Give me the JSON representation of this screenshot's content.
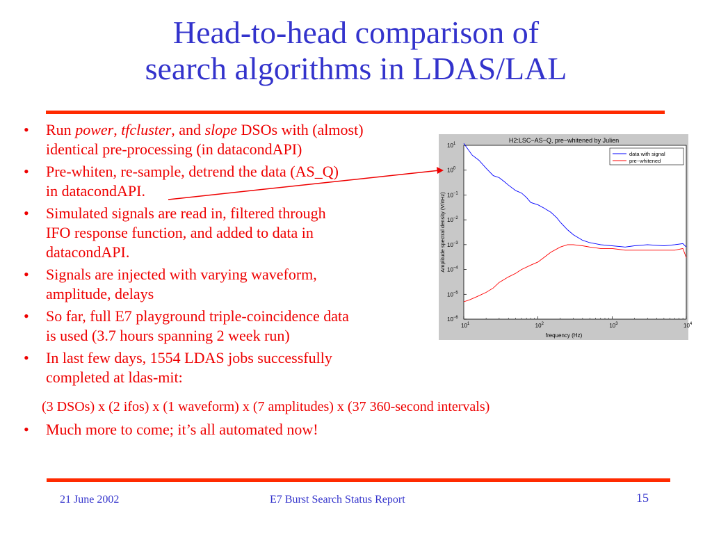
{
  "slide": {
    "title_line1": "Head-to-head comparison of",
    "title_line2": "search algorithms in LDAS/LAL",
    "bullets": [
      {
        "line1_parts": [
          "Run ",
          "power",
          ", ",
          "tfcluster",
          ", and ",
          "slope",
          " DSOs with (almost)"
        ],
        "line2": "identical pre-processing (in datacondAPI)"
      },
      {
        "line1": "Pre-whiten, re-sample, detrend the data (AS_Q)",
        "line2": "in datacondAPI."
      },
      {
        "line1": "Simulated signals are read in, filtered through",
        "line2": "IFO response function, and added to data in",
        "line3": "datacondAPI."
      },
      {
        "line1": "Signals are injected with varying waveform,",
        "line2": "amplitude, delays"
      },
      {
        "line1": "So far, full E7 playground triple-coincidence data",
        "line2": "is used (3.7 hours spanning 2 week run)"
      },
      {
        "line1": "In last few days, 1554 LDAS jobs successfully",
        "line2": "completed at ldas-mit:"
      }
    ],
    "sub_line": "(3 DSOs) x (2 ifos) x (1 waveform) x (7 amplitudes) x (37 360-second intervals)",
    "last_bullet": "Much more to come; it’s all automated now!",
    "bullet_glyph": "•"
  },
  "footer": {
    "date": "21 June 2002",
    "center": "E7 Burst Search Status Report",
    "page": "15"
  },
  "chart_data": {
    "type": "line",
    "title": "H2:LSC−AS−Q, pre−whitened by Julien",
    "xlabel": "frequency (Hz)",
    "ylabel": "Amplitude spectral density (V/rtHz)",
    "x_scale": "log",
    "y_scale": "log",
    "xlim": [
      10,
      10000
    ],
    "ylim": [
      1e-06,
      10
    ],
    "x_ticks": [
      {
        "base": "10",
        "exp": "1"
      },
      {
        "base": "10",
        "exp": "2"
      },
      {
        "base": "10",
        "exp": "3"
      },
      {
        "base": "10",
        "exp": "4"
      }
    ],
    "y_ticks": [
      {
        "base": "10",
        "exp": "1"
      },
      {
        "base": "10",
        "exp": "0"
      },
      {
        "base": "10",
        "exp": "−1"
      },
      {
        "base": "10",
        "exp": "−2"
      },
      {
        "base": "10",
        "exp": "−3"
      },
      {
        "base": "10",
        "exp": "−4"
      },
      {
        "base": "10",
        "exp": "−5"
      },
      {
        "base": "10",
        "exp": "−6"
      }
    ],
    "legend_position": "top-right",
    "grid": false,
    "series": [
      {
        "name": "data with signal",
        "color": "#0000ff",
        "x": [
          10,
          13,
          16,
          20,
          25,
          30,
          35,
          40,
          50,
          60,
          70,
          80,
          100,
          120,
          150,
          180,
          200,
          250,
          300,
          400,
          500,
          700,
          1000,
          1500,
          2000,
          3000,
          5000,
          7000,
          9000,
          10000
        ],
        "y": [
          12,
          4,
          2.5,
          1.2,
          0.6,
          0.5,
          0.35,
          0.25,
          0.15,
          0.12,
          0.08,
          0.05,
          0.04,
          0.03,
          0.02,
          0.012,
          0.008,
          0.004,
          0.0025,
          0.0015,
          0.0012,
          0.001,
          0.0009,
          0.0008,
          0.0009,
          0.001,
          0.0009,
          0.001,
          0.0011,
          0.0008
        ]
      },
      {
        "name": "pre−whitened",
        "color": "#ff0000",
        "x": [
          10,
          12,
          15,
          20,
          25,
          30,
          40,
          50,
          60,
          80,
          100,
          120,
          150,
          200,
          250,
          300,
          400,
          500,
          700,
          1000,
          1500,
          2000,
          3000,
          5000,
          7000,
          9000,
          10000
        ],
        "y": [
          5e-06,
          6e-06,
          8e-06,
          1.2e-05,
          1.8e-05,
          3e-05,
          5e-05,
          7e-05,
          0.0001,
          0.00015,
          0.0002,
          0.0003,
          0.0005,
          0.0008,
          0.001,
          0.001,
          0.0009,
          0.0008,
          0.0007,
          0.0007,
          0.0006,
          0.0006,
          0.0006,
          0.0006,
          0.0006,
          0.0007,
          0.0003
        ]
      }
    ]
  },
  "colors": {
    "title": "#3333cc",
    "text": "#ee0000",
    "rule": "#ff2a00",
    "plot_bg": "#c8c8c8",
    "axes_bg": "#ffffff"
  }
}
